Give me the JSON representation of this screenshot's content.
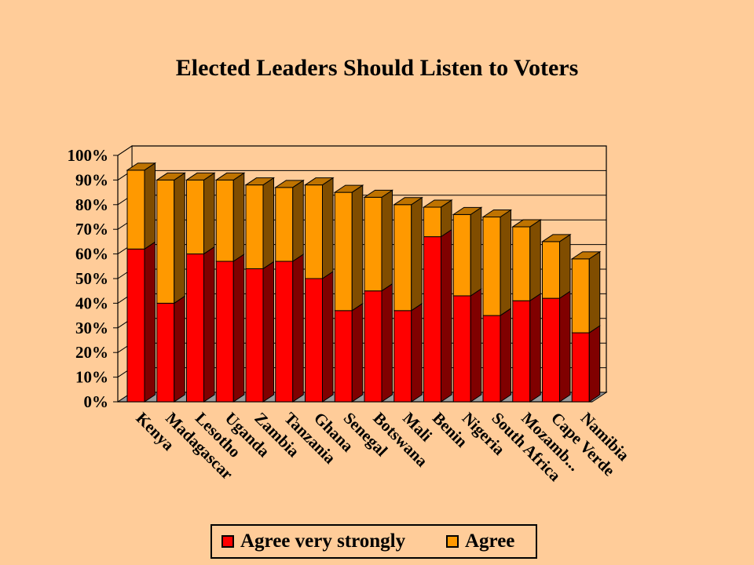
{
  "chart_data": {
    "type": "bar",
    "stacked": true,
    "three_d": true,
    "title": "Elected Leaders Should Listen to Voters",
    "categories": [
      "Kenya",
      "Madagascar",
      "Lesotho",
      "Uganda",
      "Zambia",
      "Tanzania",
      "Ghana",
      "Senegal",
      "Botswana",
      "Mali",
      "Benin",
      "Nigeria",
      "South Africa",
      "Mozamb...",
      "Cape Verde",
      "Namibia"
    ],
    "series": [
      {
        "name": "Agree very strongly",
        "color": "#FF0000",
        "values": [
          62,
          40,
          60,
          57,
          54,
          57,
          50,
          37,
          45,
          37,
          67,
          43,
          35,
          41,
          42,
          28
        ]
      },
      {
        "name": "Agree",
        "color": "#FF9900",
        "values": [
          32,
          50,
          30,
          33,
          34,
          30,
          38,
          48,
          38,
          43,
          12,
          33,
          40,
          30,
          23,
          30
        ]
      }
    ],
    "y_ticks": [
      "0%",
      "10%",
      "20%",
      "30%",
      "40%",
      "50%",
      "60%",
      "70%",
      "80%",
      "90%",
      "100%"
    ],
    "ylim": [
      0,
      100
    ],
    "grid": true,
    "legend_position": "bottom"
  }
}
